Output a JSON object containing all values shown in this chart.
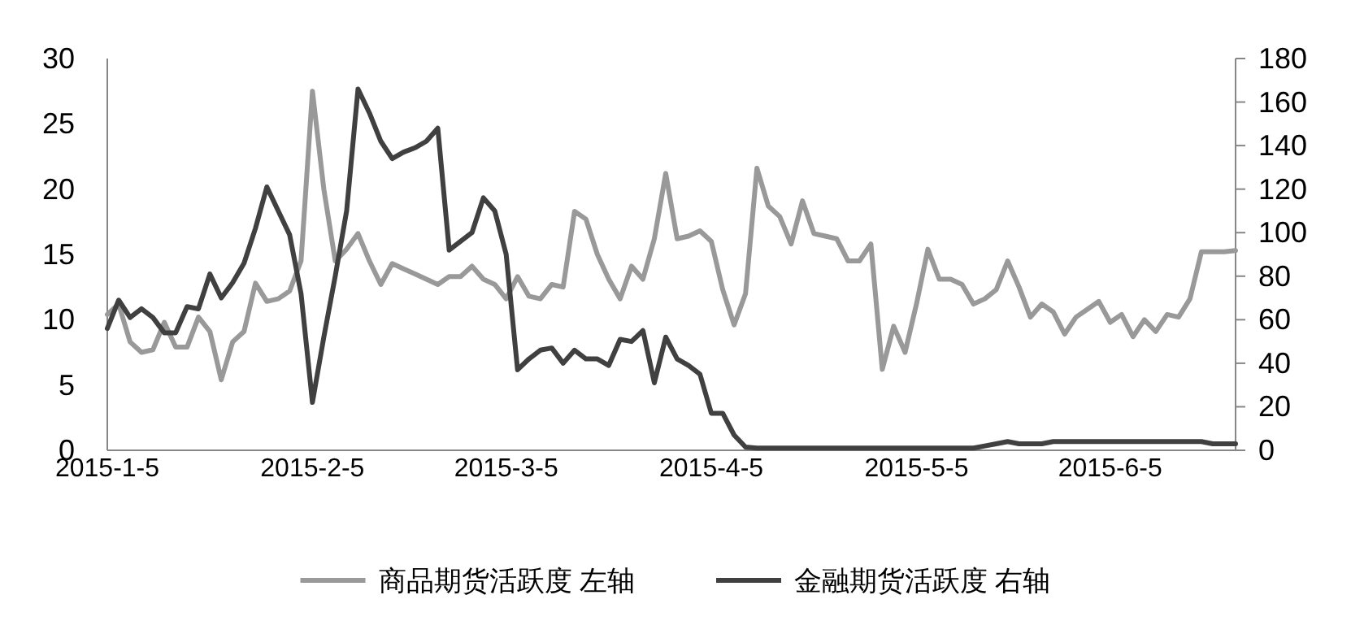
{
  "chart_data": {
    "type": "line",
    "categories": [
      "2015-1-5",
      null,
      null,
      null,
      null,
      null,
      null,
      null,
      null,
      null,
      null,
      null,
      null,
      null,
      null,
      null,
      null,
      null,
      "2015-2-5",
      null,
      null,
      null,
      null,
      null,
      null,
      null,
      null,
      null,
      null,
      null,
      null,
      null,
      null,
      null,
      null,
      "2015-3-5",
      null,
      null,
      null,
      null,
      null,
      null,
      null,
      null,
      null,
      null,
      null,
      null,
      null,
      null,
      null,
      null,
      null,
      "2015-4-5",
      null,
      null,
      null,
      null,
      null,
      null,
      null,
      null,
      null,
      null,
      null,
      null,
      null,
      null,
      null,
      null,
      null,
      "2015-5-5",
      null,
      null,
      null,
      null,
      null,
      null,
      null,
      null,
      null,
      null,
      null,
      null,
      null,
      null,
      null,
      null,
      "2015-6-5",
      null,
      null,
      null,
      null,
      null,
      null,
      null,
      null,
      null,
      null,
      null
    ],
    "series": [
      {
        "name": "商品期货活跃度 左轴",
        "color": "#999999",
        "values": [
          10.4,
          11.2,
          8.3,
          7.5,
          7.7,
          9.8,
          7.9,
          7.9,
          10.2,
          9.1,
          5.4,
          8.3,
          9.1,
          12.8,
          11.4,
          11.6,
          12.2,
          14.5,
          27.5,
          20,
          14.5,
          15.4,
          16.6,
          14.5,
          12.7,
          14.3,
          13.9,
          13.5,
          13.1,
          12.7,
          13.3,
          13.3,
          14.1,
          13.1,
          12.7,
          11.6,
          13.3,
          11.8,
          11.6,
          12.7,
          12.5,
          18.3,
          17.7,
          15,
          13.1,
          11.6,
          14.1,
          13.1,
          16.2,
          21.2,
          16.2,
          16.4,
          16.8,
          16,
          12.3,
          9.6,
          12,
          21.6,
          18.7,
          17.9,
          15.8,
          19.1,
          16.6,
          16.4,
          16.2,
          14.5,
          14.5,
          15.8,
          6.2,
          9.5,
          7.5,
          11.2,
          15.4,
          13.1,
          13.1,
          12.7,
          11.2,
          11.6,
          12.3,
          14.5,
          12.5,
          10.2,
          11.2,
          10.6,
          8.9,
          10.2,
          10.8,
          11.4,
          9.8,
          10.4,
          8.7,
          10,
          9.1,
          10.4,
          10.2,
          11.6,
          15.2,
          15.2,
          15.2,
          15.3
        ]
      },
      {
        "name": "金融期货活跃度 右轴",
        "color": "#404040",
        "axis": "y2",
        "values": [
          56,
          69,
          61,
          65,
          61,
          54,
          54,
          66,
          65,
          81,
          70,
          77,
          86,
          102,
          121,
          110,
          99,
          72,
          22,
          52,
          80,
          110,
          166,
          155,
          142,
          134,
          137,
          139,
          142,
          148,
          92,
          96,
          100,
          116,
          110,
          90,
          37,
          42,
          46,
          47,
          40,
          46,
          42,
          42,
          39,
          51,
          50,
          55,
          31,
          52,
          42,
          39,
          35,
          17,
          17,
          7,
          1.5,
          1,
          1,
          1,
          1,
          1,
          1,
          1,
          1,
          1,
          1,
          1,
          1,
          1,
          1,
          1,
          1,
          1,
          1,
          1,
          1,
          2,
          3,
          4,
          3,
          3,
          3,
          4,
          4,
          4,
          4,
          4,
          4,
          4,
          4,
          4,
          4,
          4,
          4,
          4,
          4,
          3,
          3,
          3
        ]
      }
    ],
    "ylim": [
      0,
      30
    ],
    "yticks": [
      0,
      5,
      10,
      15,
      20,
      25,
      30
    ],
    "y2lim": [
      0,
      180
    ],
    "y2ticks": [
      0,
      20,
      40,
      60,
      80,
      100,
      120,
      140,
      160,
      180
    ],
    "legend": "bottom",
    "grid": false,
    "marker": "none",
    "line_style": "solid"
  }
}
